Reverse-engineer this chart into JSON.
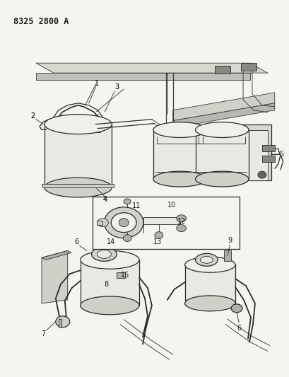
{
  "title_text": "8325 2800 A",
  "title_fontsize": 8.5,
  "title_fontweight": "bold",
  "title_color": "#1a1a1a",
  "background_color": "#f5f4f0",
  "fig_width": 4.1,
  "fig_height": 5.33,
  "dpi": 100,
  "dark": "#2a2a2a",
  "line_color": "#3a3a3a",
  "fill_light": "#e8e8e4",
  "fill_mid": "#d0cfc8",
  "fill_dark": "#b0afa8"
}
